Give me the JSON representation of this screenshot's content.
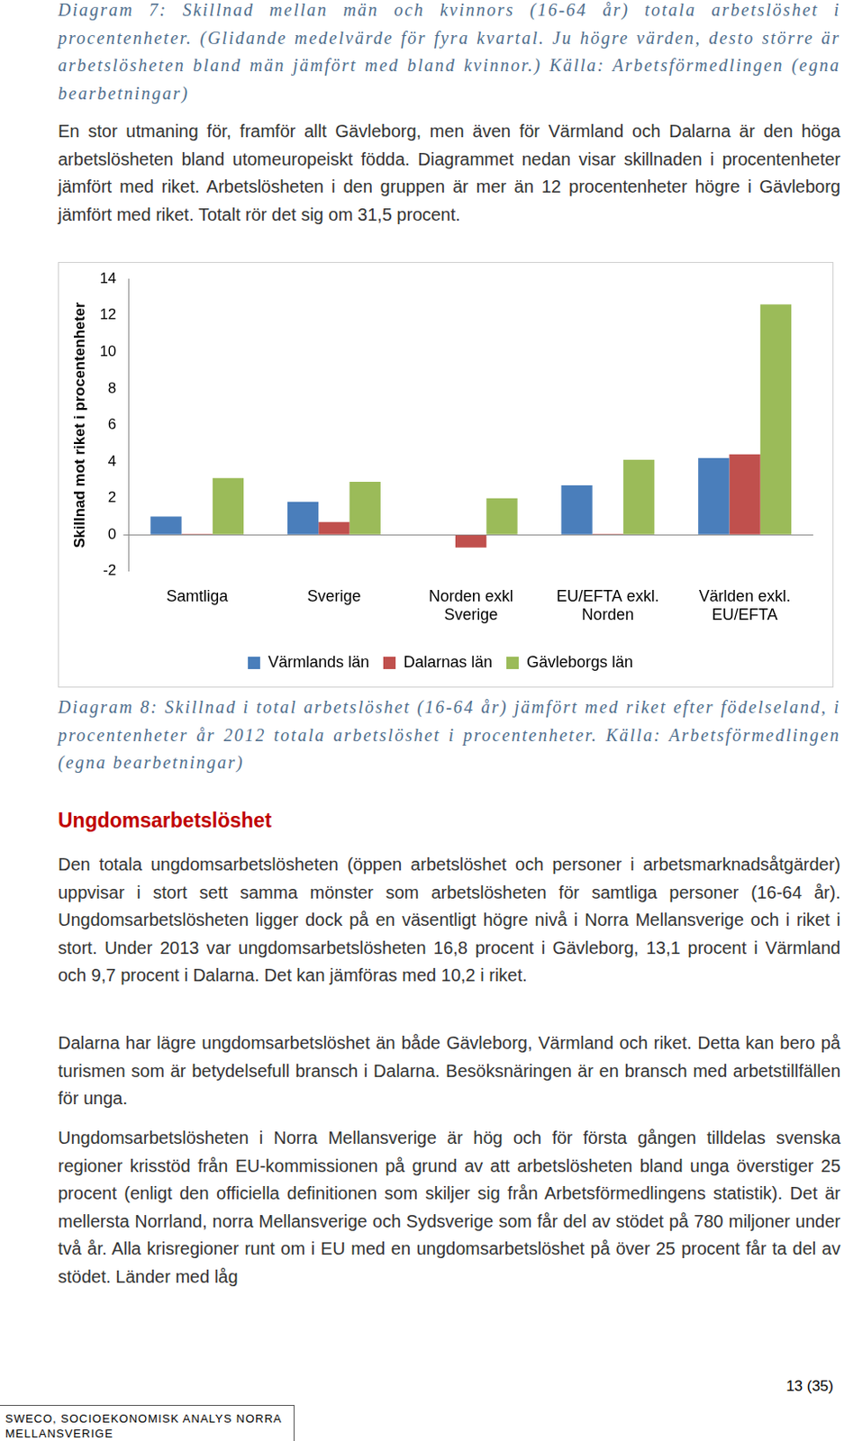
{
  "captions": {
    "diagram_7": "Diagram 7: Skillnad mellan män och kvinnors (16-64 år) totala arbetslöshet i procentenheter. (Glidande medelvärde för fyra kvartal. Ju högre värden, desto större är arbetslösheten bland män jämfört med bland kvinnor.) Källa: Arbetsförmedlingen (egna bearbetningar)",
    "diagram_8": "Diagram 8: Skillnad i total arbetslöshet (16-64 år) jämfört med riket efter födelseland, i procentenheter år 2012 totala arbetslöshet i procentenheter. Källa: Arbetsförmedlingen (egna bearbetningar)"
  },
  "paragraph_before_chart": "En stor utmaning för, framför allt Gävleborg, men även för Värmland och Dalarna är den höga arbetslösheten bland utomeuropeiskt födda. Diagrammet nedan visar skillnaden i procentenheter jämfört med riket. Arbetslösheten i den gruppen är mer än 12 procentenheter högre i Gävleborg jämfört med riket. Totalt rör det sig om 31,5 procent.",
  "chart_data": {
    "type": "bar",
    "y_label": "Skillnad mot riket i procentenheter",
    "categories": [
      [
        "Samtliga"
      ],
      [
        "Sverige"
      ],
      [
        "Norden exkl",
        "Sverige"
      ],
      [
        "EU/EFTA exkl.",
        "Norden"
      ],
      [
        "Världen exkl.",
        "EU/EFTA"
      ]
    ],
    "series": [
      {
        "name": "Värmlands län",
        "color": "#4a7ebb",
        "values": [
          1.0,
          1.8,
          0,
          2.7,
          4.2
        ]
      },
      {
        "name": "Dalarnas län",
        "color": "#c0504d",
        "values": [
          0.05,
          0.7,
          -0.7,
          0.05,
          4.4
        ]
      },
      {
        "name": "Gävleborgs län",
        "color": "#9bbb59",
        "values": [
          3.1,
          2.9,
          2.0,
          4.1,
          12.6
        ]
      }
    ],
    "ylim": [
      -2,
      14
    ],
    "yticks": [
      -2,
      0,
      2,
      4,
      6,
      8,
      10,
      12,
      14
    ],
    "grid": false,
    "legend": "bottom"
  },
  "heading": "Ungdomsarbetslöshet",
  "paragraphs": [
    "Den totala ungdomsarbetslösheten (öppen arbetslöshet och personer i arbetsmarknadsåtgärder) uppvisar i stort sett samma mönster som arbetslösheten för samtliga personer (16-64 år). Ungdomsarbetslösheten ligger dock på en väsentligt högre nivå i Norra Mellansverige och i riket i stort. Under 2013 var ungdomsarbetslösheten 16,8 procent i Gävleborg, 13,1 procent i Värmland och 9,7 procent i Dalarna. Det kan jämföras med 10,2 i riket.",
    "Dalarna har lägre ungdomsarbetslöshet än både Gävleborg, Värmland och riket. Detta kan bero på turismen som är betydelsefull bransch i Dalarna. Besöksnäringen är en bransch med arbetstillfällen för unga.",
    "Ungdomsarbetslösheten i Norra Mellansverige är hög och för första gången tilldelas svenska regioner krisstöd från EU-kommissionen på grund av att arbetslösheten bland unga överstiger 25 procent (enligt den officiella definitionen som skiljer sig från Arbetsförmedlingens statistik). Det är mellersta Norrland, norra Mellansverige och Sydsverige som får del av stödet på 780 miljoner under två år. Alla krisregioner runt om i EU med en ungdomsarbetslöshet på över 25 procent får ta del av stödet. Länder med låg"
  ],
  "footer": {
    "page": "13 (35)",
    "report": "SWECO, SOCIOEKONOMISK ANALYS NORRA MELLANSVERIGE"
  }
}
